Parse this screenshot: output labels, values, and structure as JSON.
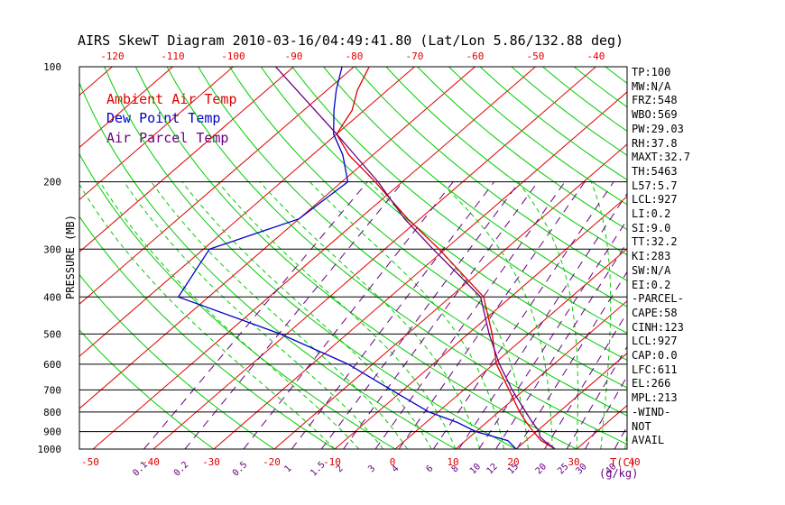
{
  "chart_data": {
    "type": "line",
    "title": "AIRS SkewT Diagram 2010-03-16/04:49:41.80 (Lat/Lon 5.86/132.88 deg)",
    "ylabel": "PRESSURE (MB)",
    "xlabel": "T(C)",
    "mixing_ratio_unit": "(g/kg)",
    "pressure_range": [
      1000,
      100
    ],
    "pressure_ticks": [
      100,
      200,
      300,
      400,
      500,
      600,
      700,
      800,
      900,
      1000
    ],
    "bottom_temp_ticks": [
      -50,
      -40,
      -30,
      -20,
      -10,
      0,
      10,
      20,
      30,
      40
    ],
    "top_temp_ticks": [
      -120,
      -110,
      -100,
      -90,
      -80,
      -70,
      -60,
      -50,
      -40
    ],
    "mixing_ratio_ticks": [
      "0.1",
      "0.2",
      "0.5",
      "1",
      "1.5",
      "2",
      "3",
      "4",
      "6",
      "8",
      "10",
      "12",
      "15",
      "20",
      "25",
      "30",
      "40"
    ],
    "legend": [
      {
        "label": "Ambient Air Temp",
        "color": "#e00000"
      },
      {
        "label": "Dew Point Temp",
        "color": "#0000c8"
      },
      {
        "label": "Air Parcel Temp",
        "color": "#6a0080"
      }
    ],
    "series": [
      {
        "name": "Ambient Air Temp",
        "color": "#e00000",
        "pressure": [
          1000,
          950,
          900,
          850,
          800,
          700,
          600,
          500,
          400,
          300,
          250,
          200,
          170,
          150,
          130,
          115,
          100
        ],
        "temperature": [
          26.5,
          22.5,
          19.5,
          16.5,
          13.5,
          7.5,
          0.5,
          -6.0,
          -14.5,
          -31.0,
          -42.0,
          -54.5,
          -64.0,
          -70.0,
          -72.0,
          -75.0,
          -77.5
        ]
      },
      {
        "name": "Dew Point Temp",
        "color": "#0000c8",
        "pressure": [
          1000,
          950,
          900,
          850,
          800,
          700,
          600,
          500,
          400,
          300,
          250,
          200,
          170,
          150,
          130,
          115,
          100
        ],
        "temperature": [
          20.0,
          17.0,
          10.0,
          5.0,
          -1.5,
          -12.0,
          -24.0,
          -41.0,
          -65.0,
          -69.0,
          -60.0,
          -59.0,
          -65.0,
          -70.5,
          -75.0,
          -78.5,
          -82.0
        ]
      },
      {
        "name": "Air Parcel Temp",
        "color": "#6a0080",
        "pressure": [
          1000,
          950,
          927,
          900,
          850,
          800,
          700,
          600,
          500,
          400,
          300,
          250,
          200,
          150,
          100
        ],
        "temperature": [
          26.5,
          23.0,
          21.5,
          20.5,
          17.5,
          14.5,
          8.0,
          1.0,
          -6.5,
          -15.0,
          -32.0,
          -42.5,
          -54.0,
          -70.0,
          -93.0
        ]
      }
    ]
  },
  "indices": [
    "TP:100",
    "MW:N/A",
    "FRZ:548",
    "WBO:569",
    "PW:29.03",
    "RH:37.8",
    "MAXT:32.7",
    "TH:5463",
    "L57:5.7",
    "LCL:927",
    "LI:0.2",
    "SI:9.0",
    "TT:32.2",
    "KI:283",
    "SW:N/A",
    "EI:0.2",
    "-PARCEL-",
    "CAPE:58",
    "CINH:123",
    "LCL:927",
    "CAP:0.0",
    "LFC:611",
    "EL:266",
    "MPL:213",
    "-WIND-",
    "NOT",
    "AVAIL"
  ],
  "colors": {
    "isotherm": "#e00000",
    "dry_adiabat": "#00cc00",
    "moist_adiabat": "#00cc00",
    "mixing_ratio": "#6a0080",
    "isobar": "#000000",
    "tick_label": "#e00000",
    "mixing_label": "#6a0080"
  }
}
